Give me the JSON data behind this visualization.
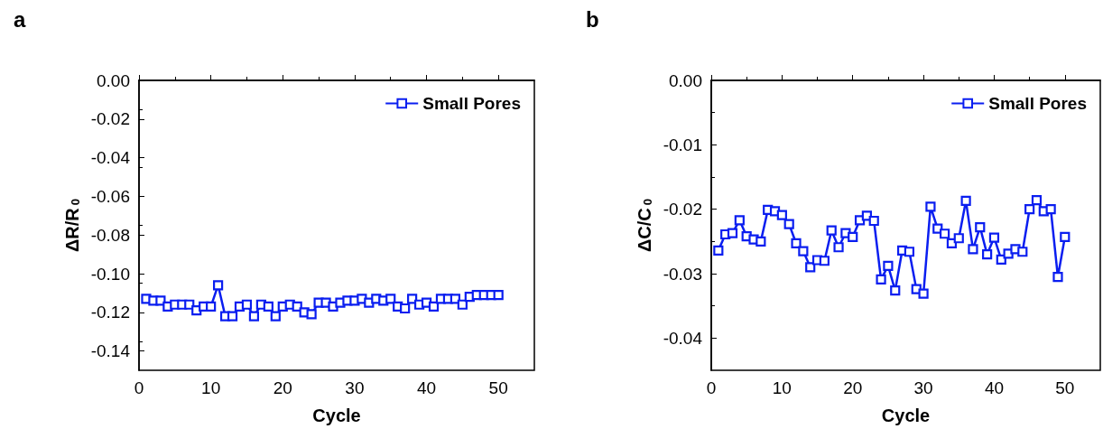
{
  "chart_data": [
    {
      "type": "line",
      "title": "a",
      "xlabel": "Cycle",
      "ylabel": "ΔR/R$_{0}$",
      "x": [
        1,
        2,
        3,
        4,
        5,
        6,
        7,
        8,
        9,
        10,
        11,
        12,
        13,
        14,
        15,
        16,
        17,
        18,
        19,
        20,
        21,
        22,
        23,
        24,
        25,
        26,
        27,
        28,
        29,
        30,
        31,
        32,
        33,
        34,
        35,
        36,
        37,
        38,
        39,
        40,
        41,
        42,
        43,
        44,
        45,
        46,
        47,
        48,
        49,
        50
      ],
      "series": [
        {
          "name": "Small Pores",
          "color": "#0a1ef0",
          "values": [
            -0.113,
            -0.114,
            -0.114,
            -0.117,
            -0.116,
            -0.116,
            -0.116,
            -0.119,
            -0.117,
            -0.117,
            -0.106,
            -0.122,
            -0.122,
            -0.117,
            -0.116,
            -0.122,
            -0.116,
            -0.117,
            -0.122,
            -0.117,
            -0.116,
            -0.117,
            -0.12,
            -0.121,
            -0.115,
            -0.115,
            -0.117,
            -0.115,
            -0.114,
            -0.114,
            -0.113,
            -0.115,
            -0.113,
            -0.114,
            -0.113,
            -0.117,
            -0.118,
            -0.113,
            -0.116,
            -0.115,
            -0.117,
            -0.113,
            -0.113,
            -0.113,
            -0.116,
            -0.112,
            -0.111,
            -0.111,
            -0.111,
            -0.111
          ]
        }
      ],
      "xlim": [
        0,
        55
      ],
      "xticks": [
        0,
        10,
        20,
        30,
        40,
        50
      ],
      "ylim": [
        -0.15,
        0
      ],
      "yticks": [
        {
          "value": -0.14,
          "label": "-0.14"
        },
        {
          "value": -0.12,
          "label": "-0.12"
        },
        {
          "value": -0.1,
          "label": "-0.10"
        },
        {
          "value": -0.08,
          "label": "-0.08"
        },
        {
          "value": -0.06,
          "label": "-0.06"
        },
        {
          "value": -0.04,
          "label": "-0.04"
        },
        {
          "value": -0.02,
          "label": "-0.02"
        },
        {
          "value": 0,
          "label": "0.00"
        }
      ],
      "grid": false,
      "legend": "top right",
      "marker": "square",
      "line_style": "solid"
    },
    {
      "type": "line",
      "title": "b",
      "xlabel": "Cycle",
      "ylabel": "ΔC/C$_{0}$",
      "x": [
        1,
        2,
        3,
        4,
        5,
        6,
        7,
        8,
        9,
        10,
        11,
        12,
        13,
        14,
        15,
        16,
        17,
        18,
        19,
        20,
        21,
        22,
        23,
        24,
        25,
        26,
        27,
        28,
        29,
        30,
        31,
        32,
        33,
        34,
        35,
        36,
        37,
        38,
        39,
        40,
        41,
        42,
        43,
        44,
        45,
        46,
        47,
        48,
        49,
        50
      ],
      "series": [
        {
          "name": "Small Pores",
          "color": "#0a1ef0",
          "values": [
            -0.0264,
            -0.0239,
            -0.0237,
            -0.0217,
            -0.0242,
            -0.0247,
            -0.025,
            -0.0201,
            -0.0203,
            -0.0209,
            -0.0223,
            -0.0253,
            -0.0265,
            -0.029,
            -0.0279,
            -0.028,
            -0.0233,
            -0.0259,
            -0.0237,
            -0.0243,
            -0.0217,
            -0.021,
            -0.0218,
            -0.0309,
            -0.0288,
            -0.0326,
            -0.0264,
            -0.0266,
            -0.0324,
            -0.0331,
            -0.0196,
            -0.023,
            -0.0238,
            -0.0253,
            -0.0245,
            -0.0187,
            -0.0262,
            -0.0228,
            -0.027,
            -0.0244,
            -0.0278,
            -0.0269,
            -0.0262,
            -0.0266,
            -0.02,
            -0.0186,
            -0.0203,
            -0.02,
            -0.0305,
            -0.0243
          ]
        }
      ],
      "xlim": [
        0,
        55
      ],
      "xticks": [
        0,
        10,
        20,
        30,
        40,
        50
      ],
      "ylim": [
        -0.045,
        0
      ],
      "yticks": [
        {
          "value": -0.04,
          "label": "-0.04"
        },
        {
          "value": -0.03,
          "label": "-0.03"
        },
        {
          "value": -0.02,
          "label": "-0.02"
        },
        {
          "value": -0.01,
          "label": "-0.01"
        },
        {
          "value": 0,
          "label": "0.00"
        }
      ],
      "grid": false,
      "legend": "top right",
      "marker": "square",
      "line_style": "solid"
    }
  ]
}
